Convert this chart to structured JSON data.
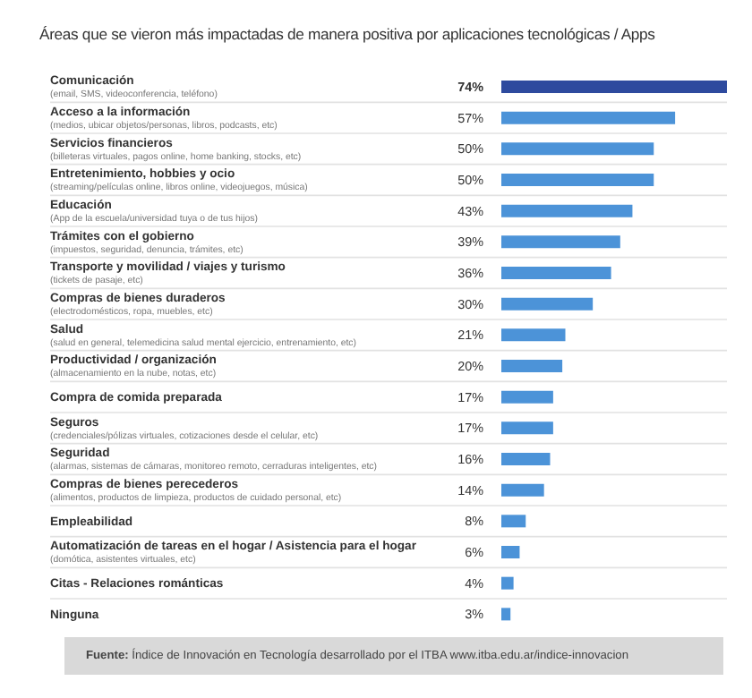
{
  "chart_data": {
    "type": "bar",
    "orientation": "horizontal",
    "title": "Áreas que se vieron más impactadas de manera positiva por aplicaciones tecnológicas / Apps",
    "categories": [
      "Comunicación\n(email, SMS, videoconferencia, teléfono)",
      "Acceso a la información\n(medios, ubicar objetos/personas, libros, podcasts, etc)",
      "Servicios financieros\n(billeteras virtuales, pagos online, home banking, stocks, etc)",
      "Entretenimiento, hobbies y ocio\n(streaming/películas online, libros online, videojuegos, música)",
      "Educación\n(App de la escuela/universidad tuya o de tus hijos)",
      "Trámites con el gobierno\n(impuestos, seguridad, denuncia, trámites, etc)",
      "Transporte y movilidad / viajes y turismo\n(tickets de pasaje, etc)",
      "Compras de bienes duraderos\n(electrodomésticos, ropa, muebles, etc)",
      "Salud\n(salud en general, telemedicina salud mental ejercicio, entrenamiento, etc)",
      "Productividad / organización\n(almacenamiento en la nube, notas, etc)",
      "Compra de comida preparada",
      "Seguros\n(credenciales/pólizas virtuales, cotizaciones desde el celular, etc)",
      "Seguridad\n(alarmas, sistemas de cámaras, monitoreo remoto, cerraduras inteligentes, etc)",
      "Compras de bienes perecederos\n(alimentos, productos de limpieza, productos de cuidado personal, etc)",
      "Empleabilidad",
      "Automatización de tareas en el hogar / Asistencia para el hogar\n(domótica, asistentes virtuales, etc)",
      "Citas - Relaciones románticas",
      "Ninguna"
    ],
    "values": [
      74,
      57,
      50,
      50,
      43,
      39,
      36,
      30,
      21,
      20,
      17,
      17,
      16,
      14,
      8,
      6,
      4,
      3
    ],
    "value_labels": [
      "74%",
      "57%",
      "50%",
      "50%",
      "43%",
      "39%",
      "36%",
      "30%",
      "21%",
      "20%",
      "17%",
      "17%",
      "16%",
      "14%",
      "8%",
      "6%",
      "4%",
      "3%"
    ],
    "colors": [
      "#2e4a9e",
      "#4c93d8",
      "#4c93d8",
      "#4c93d8",
      "#4c93d8",
      "#4c93d8",
      "#4c93d8",
      "#4c93d8",
      "#4c93d8",
      "#4c93d8",
      "#4c93d8",
      "#4c93d8",
      "#4c93d8",
      "#4c93d8",
      "#4c93d8",
      "#4c93d8",
      "#4c93d8",
      "#4c93d8"
    ],
    "grid": "y",
    "annotations": [
      "Fuente: Índice de Innovación en Tecnología desarrollado por el ITBA www.itba.edu.ar/indice-innovacion"
    ]
  }
}
